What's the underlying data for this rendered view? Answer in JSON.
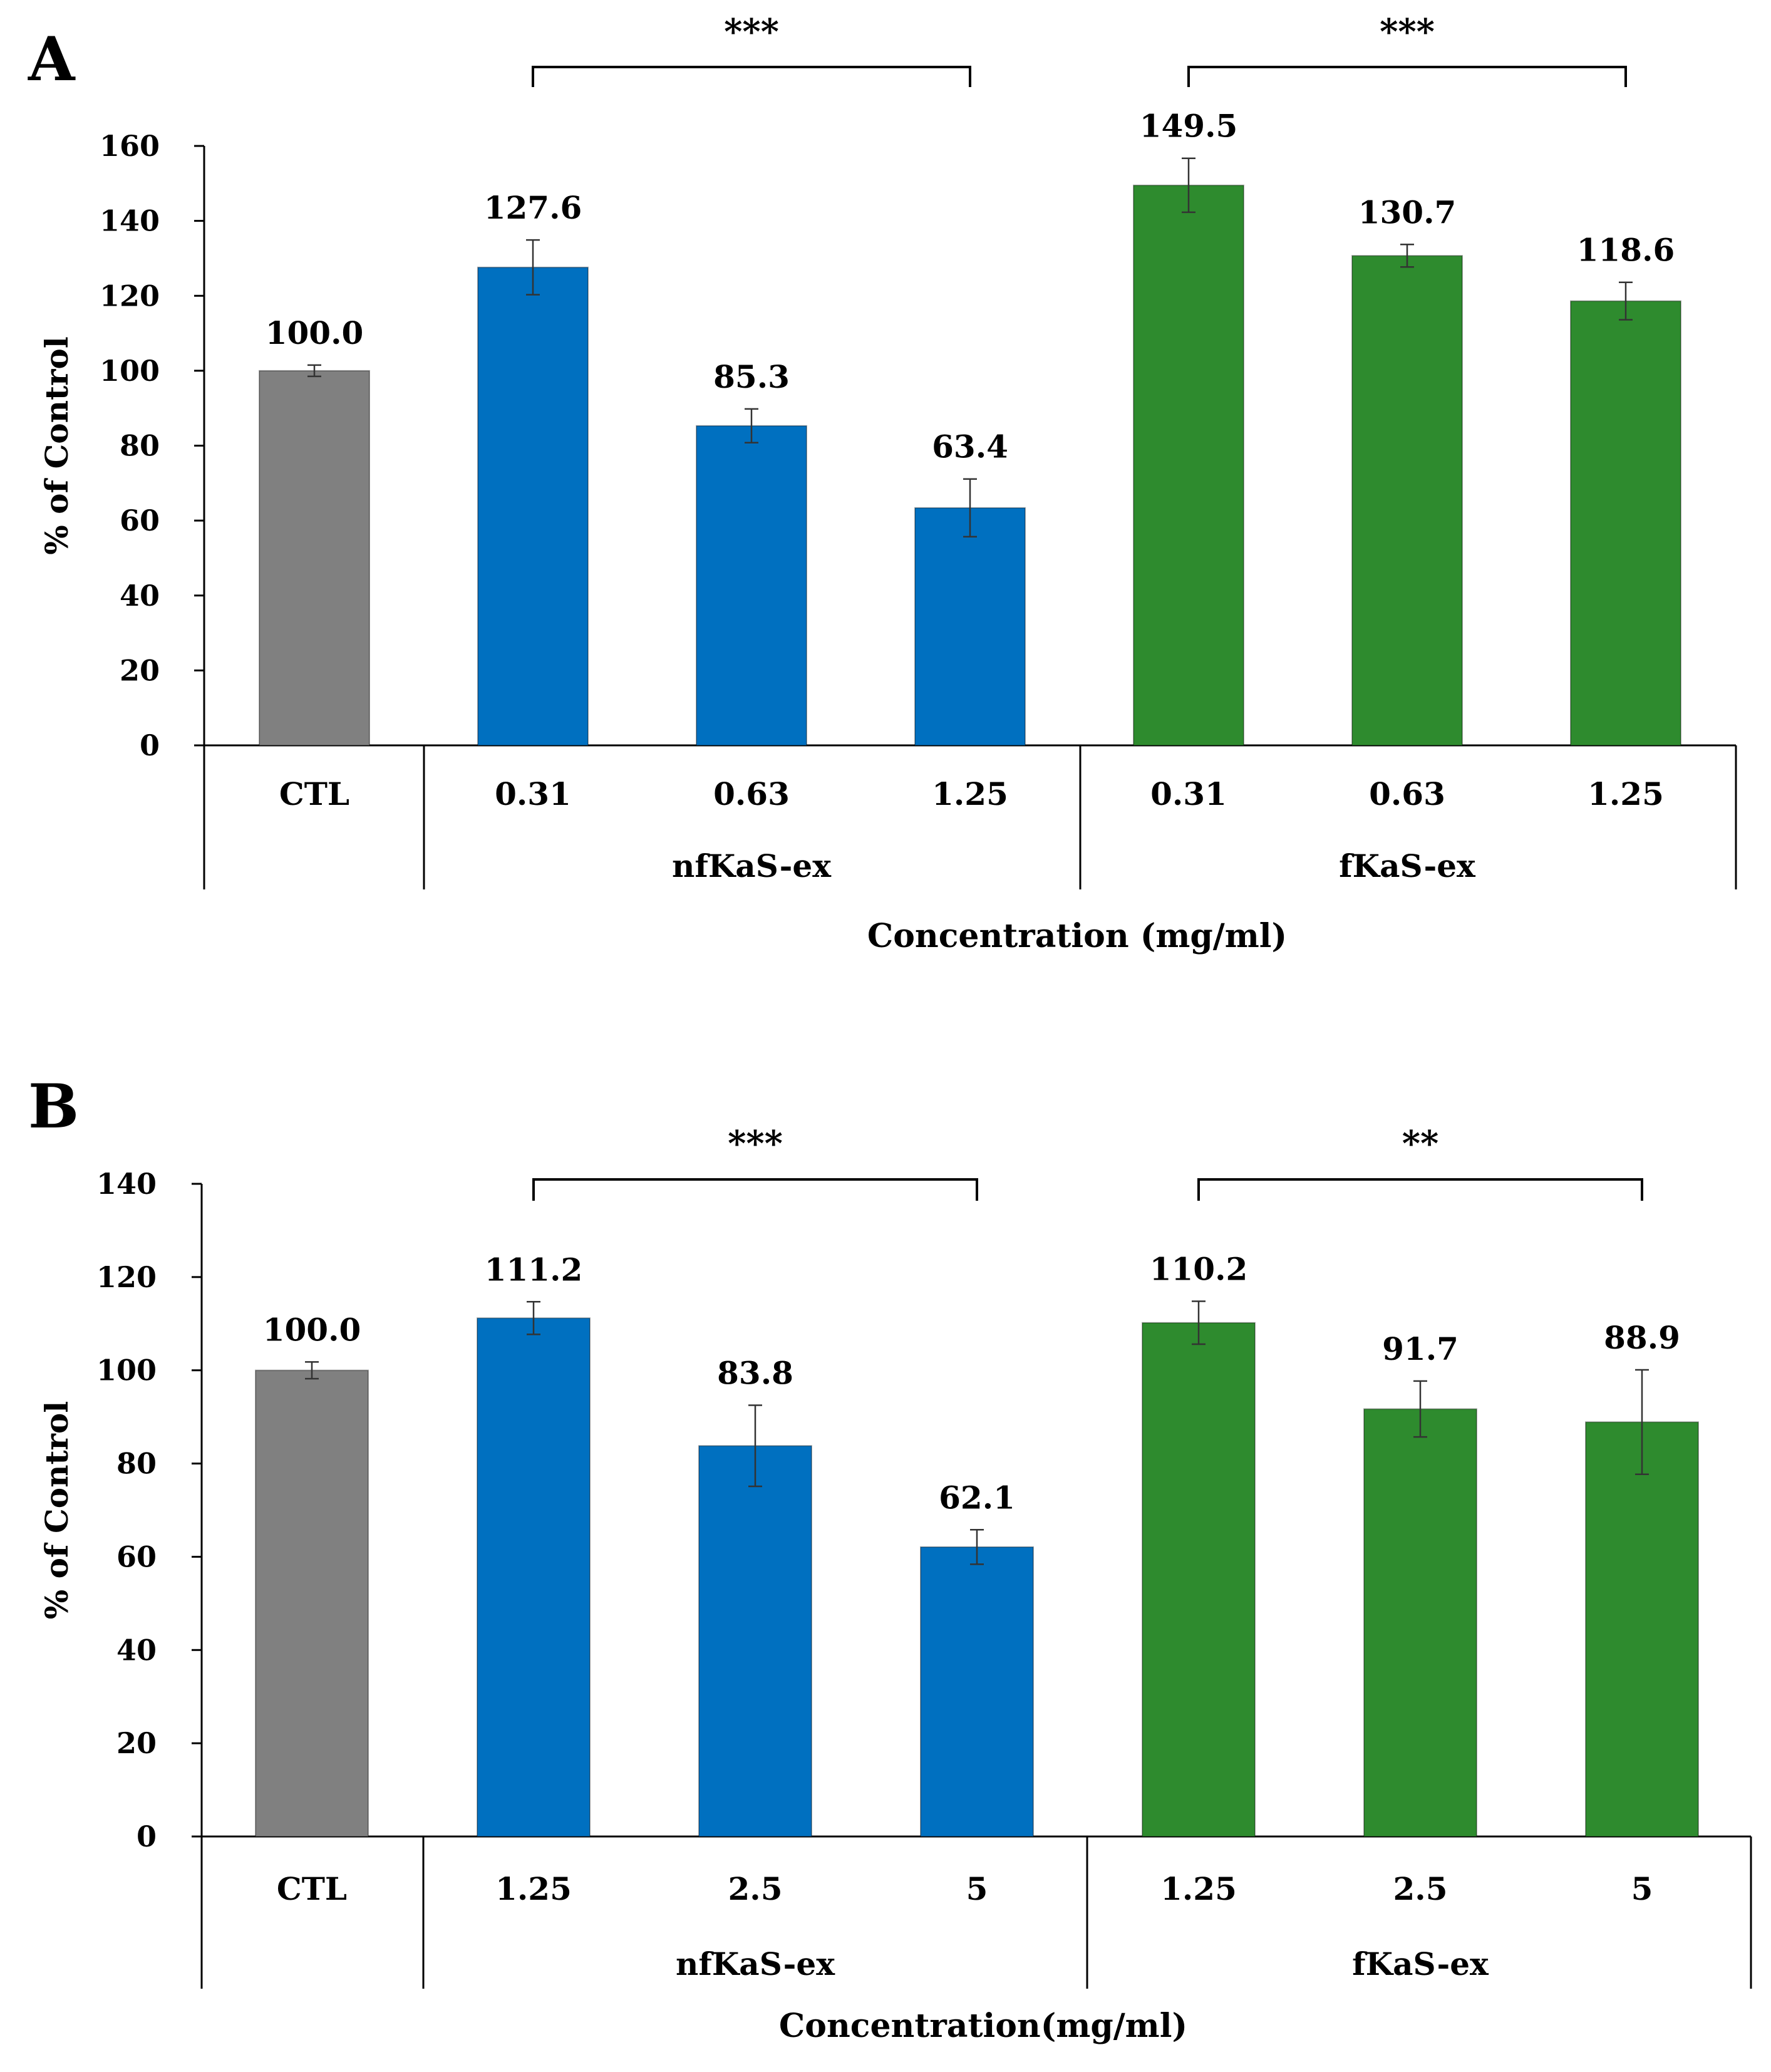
{
  "chart_data": [
    {
      "type": "bar",
      "panel_label": "A",
      "categories": [
        "CTL",
        "0.31",
        "0.63",
        "1.25",
        "0.31",
        "0.63",
        "1.25"
      ],
      "groups": [
        {
          "label": "",
          "start": 0,
          "end": 0
        },
        {
          "label": "nfKaS-ex",
          "start": 1,
          "end": 3
        },
        {
          "label": "fKaS-ex",
          "start": 4,
          "end": 6
        }
      ],
      "values": [
        100.0,
        127.6,
        85.3,
        63.4,
        149.5,
        130.7,
        118.6
      ],
      "value_labels": [
        "100.0",
        "127.6",
        "85.3",
        "63.4",
        "149.5",
        "130.7",
        "118.6"
      ],
      "errors": [
        1.5,
        7.3,
        4.5,
        7.7,
        7.2,
        3.0,
        5.0
      ],
      "bar_colors": [
        "#808080",
        "#0070C0",
        "#0070C0",
        "#0070C0",
        "#2E8B2E",
        "#2E8B2E",
        "#2E8B2E"
      ],
      "significance": [
        {
          "label": "***",
          "from": 1,
          "to": 3
        },
        {
          "label": "***",
          "from": 4,
          "to": 6
        }
      ],
      "ylabel": "% of Control",
      "xlabel": "Concentration (mg/ml)",
      "ylim": [
        0,
        160
      ],
      "yticks": [
        0,
        20,
        40,
        60,
        80,
        100,
        120,
        140,
        160
      ],
      "grid": false
    },
    {
      "type": "bar",
      "panel_label": "B",
      "categories": [
        "CTL",
        "1.25",
        "2.5",
        "5",
        "1.25",
        "2.5",
        "5"
      ],
      "groups": [
        {
          "label": "",
          "start": 0,
          "end": 0
        },
        {
          "label": "nfKaS-ex",
          "start": 1,
          "end": 3
        },
        {
          "label": "fKaS-ex",
          "start": 4,
          "end": 6
        }
      ],
      "values": [
        100.0,
        111.2,
        83.8,
        62.1,
        110.2,
        91.7,
        88.9
      ],
      "value_labels": [
        "100.0",
        "111.2",
        "83.8",
        "62.1",
        "110.2",
        "91.7",
        "88.9"
      ],
      "errors": [
        1.8,
        3.5,
        8.7,
        3.7,
        4.6,
        6.0,
        11.2
      ],
      "bar_colors": [
        "#808080",
        "#0070C0",
        "#0070C0",
        "#0070C0",
        "#2E8B2E",
        "#2E8B2E",
        "#2E8B2E"
      ],
      "significance": [
        {
          "label": "***",
          "from": 1,
          "to": 3
        },
        {
          "label": "**",
          "from": 4,
          "to": 6
        }
      ],
      "ylabel": "% of Control",
      "xlabel": "Concentration(mg/ml)",
      "ylim": [
        0,
        140
      ],
      "yticks": [
        0,
        20,
        40,
        60,
        80,
        100,
        120,
        140
      ],
      "grid": false
    }
  ]
}
